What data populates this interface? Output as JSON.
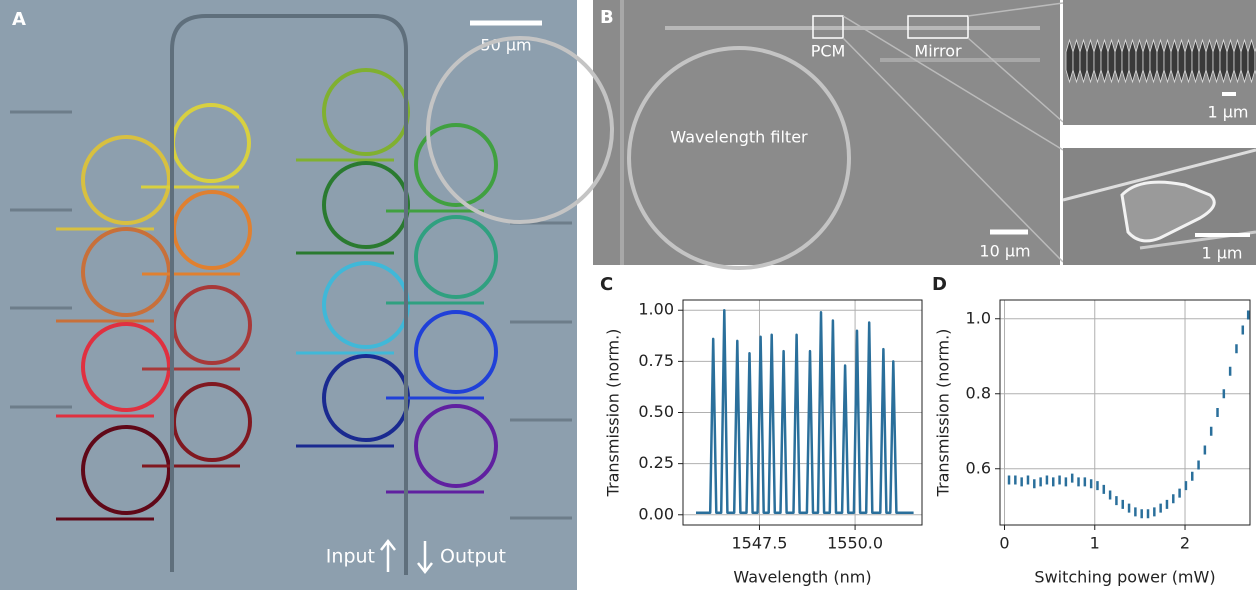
{
  "panels": {
    "a": {
      "label": "A",
      "scale_bar": "50 µm",
      "input": "Input",
      "output": "Output"
    },
    "b": {
      "label": "B",
      "pcm": "PCM",
      "mirror": "Mirror",
      "filter": "Wavelength filter",
      "scale_bar": "10 µm",
      "inset_top_scale": "1 µm",
      "inset_bottom_scale": "1 µm"
    }
  },
  "chart_data": [
    {
      "type": "line",
      "panel_label": "C",
      "xlabel": "Wavelength (nm)",
      "ylabel": "Transmission (norm.)",
      "color": "#2a6f9b",
      "x": [
        1545.84,
        1546.21,
        1546.29,
        1546.37,
        1546.5,
        1546.58,
        1546.66,
        1546.84,
        1546.92,
        1547.0,
        1547.16,
        1547.24,
        1547.32,
        1547.45,
        1547.53,
        1547.61,
        1547.74,
        1547.82,
        1547.9,
        1548.05,
        1548.13,
        1548.21,
        1548.39,
        1548.47,
        1548.55,
        1548.74,
        1548.82,
        1548.9,
        1549.03,
        1549.11,
        1549.19,
        1549.34,
        1549.42,
        1549.5,
        1549.66,
        1549.74,
        1549.82,
        1549.97,
        1550.05,
        1550.13,
        1550.29,
        1550.37,
        1550.45,
        1550.66,
        1550.74,
        1550.82,
        1550.92,
        1551.0,
        1551.08,
        1551.53
      ],
      "values": [
        0.01,
        0.01,
        0.86,
        0.01,
        0.01,
        1.0,
        0.01,
        0.01,
        0.85,
        0.01,
        0.01,
        0.79,
        0.01,
        0.01,
        0.87,
        0.01,
        0.01,
        0.88,
        0.01,
        0.01,
        0.8,
        0.01,
        0.01,
        0.88,
        0.01,
        0.01,
        0.8,
        0.01,
        0.01,
        0.99,
        0.01,
        0.01,
        0.95,
        0.01,
        0.01,
        0.73,
        0.01,
        0.01,
        0.9,
        0.01,
        0.01,
        0.94,
        0.01,
        0.01,
        0.81,
        0.01,
        0.01,
        0.75,
        0.01,
        0.01
      ],
      "xlim": [
        1545.5,
        1551.75
      ],
      "ylim": [
        -0.05,
        1.05
      ],
      "xticks": [
        1547.5,
        {
          "value": 1550,
          "label": "1550.0"
        }
      ],
      "yticks": [
        {
          "value": 0,
          "label": "0.00"
        },
        {
          "value": 0.25,
          "label": "0.25"
        },
        {
          "value": 0.5,
          "label": "0.50"
        },
        {
          "value": 0.75,
          "label": "0.75"
        },
        {
          "value": 1,
          "label": "1.00"
        }
      ],
      "grid": true
    },
    {
      "type": "errorbar",
      "panel_label": "D",
      "xlabel": "Switching power (mW)",
      "ylabel": "Transmission (norm.)",
      "color": "#2a6f9b",
      "x": [
        0.05,
        0.12,
        0.19,
        0.26,
        0.33,
        0.4,
        0.47,
        0.54,
        0.61,
        0.68,
        0.75,
        0.82,
        0.89,
        0.96,
        1.03,
        1.1,
        1.17,
        1.24,
        1.31,
        1.38,
        1.45,
        1.52,
        1.59,
        1.66,
        1.73,
        1.8,
        1.87,
        1.94,
        2.01,
        2.08,
        2.15,
        2.22,
        2.29,
        2.36,
        2.43,
        2.5,
        2.57,
        2.64,
        2.7
      ],
      "values": [
        0.57,
        0.57,
        0.565,
        0.57,
        0.56,
        0.565,
        0.57,
        0.565,
        0.57,
        0.565,
        0.575,
        0.565,
        0.565,
        0.56,
        0.555,
        0.545,
        0.53,
        0.515,
        0.505,
        0.495,
        0.485,
        0.48,
        0.48,
        0.485,
        0.495,
        0.505,
        0.52,
        0.535,
        0.555,
        0.58,
        0.61,
        0.65,
        0.7,
        0.75,
        0.8,
        0.86,
        0.92,
        0.97,
        1.01
      ],
      "errors": [
        0.012,
        0.012,
        0.012,
        0.012,
        0.012,
        0.012,
        0.012,
        0.012,
        0.012,
        0.012,
        0.012,
        0.012,
        0.012,
        0.012,
        0.012,
        0.012,
        0.012,
        0.012,
        0.012,
        0.012,
        0.012,
        0.012,
        0.012,
        0.012,
        0.012,
        0.012,
        0.012,
        0.012,
        0.012,
        0.012,
        0.012,
        0.012,
        0.012,
        0.012,
        0.012,
        0.012,
        0.012,
        0.012,
        0.012
      ],
      "xlim": [
        -0.05,
        2.72
      ],
      "ylim": [
        0.45,
        1.05
      ],
      "xticks": [
        0,
        1,
        2
      ],
      "yticks": [
        0.6,
        0.8,
        {
          "value": 1,
          "label": "1.0"
        }
      ],
      "grid": true
    }
  ]
}
